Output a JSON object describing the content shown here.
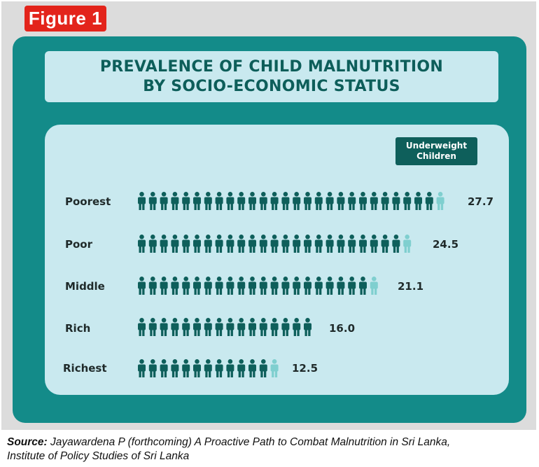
{
  "figure_label": "Figure 1",
  "source": {
    "label": "Source:",
    "text": "Jayawardena P (forthcoming) A Proactive Path to Combat Malnutrition in Sri Lanka,",
    "text2": "Institute of Policy Studies of Sri Lanka"
  },
  "colors": {
    "icon_full": "#0e5f5b",
    "icon_partial": "#7fcfcf",
    "panel": "#138b89",
    "badge": "#e3241b"
  },
  "chart_data": {
    "type": "bar",
    "title_line1": "PREVALENCE OF CHILD MALNUTRITION",
    "title_line2": "BY SOCIO-ECONOMIC STATUS",
    "legend": [
      "Underweight",
      "Children"
    ],
    "categories": [
      "Poorest",
      "Poor",
      "Middle",
      "Rich",
      "Richest"
    ],
    "values": [
      "27.7",
      "24.5",
      "21.1",
      "16.0",
      "12.5"
    ],
    "unit_per_icon": 1,
    "icon_name": "child-figure-icon",
    "grid": false
  }
}
